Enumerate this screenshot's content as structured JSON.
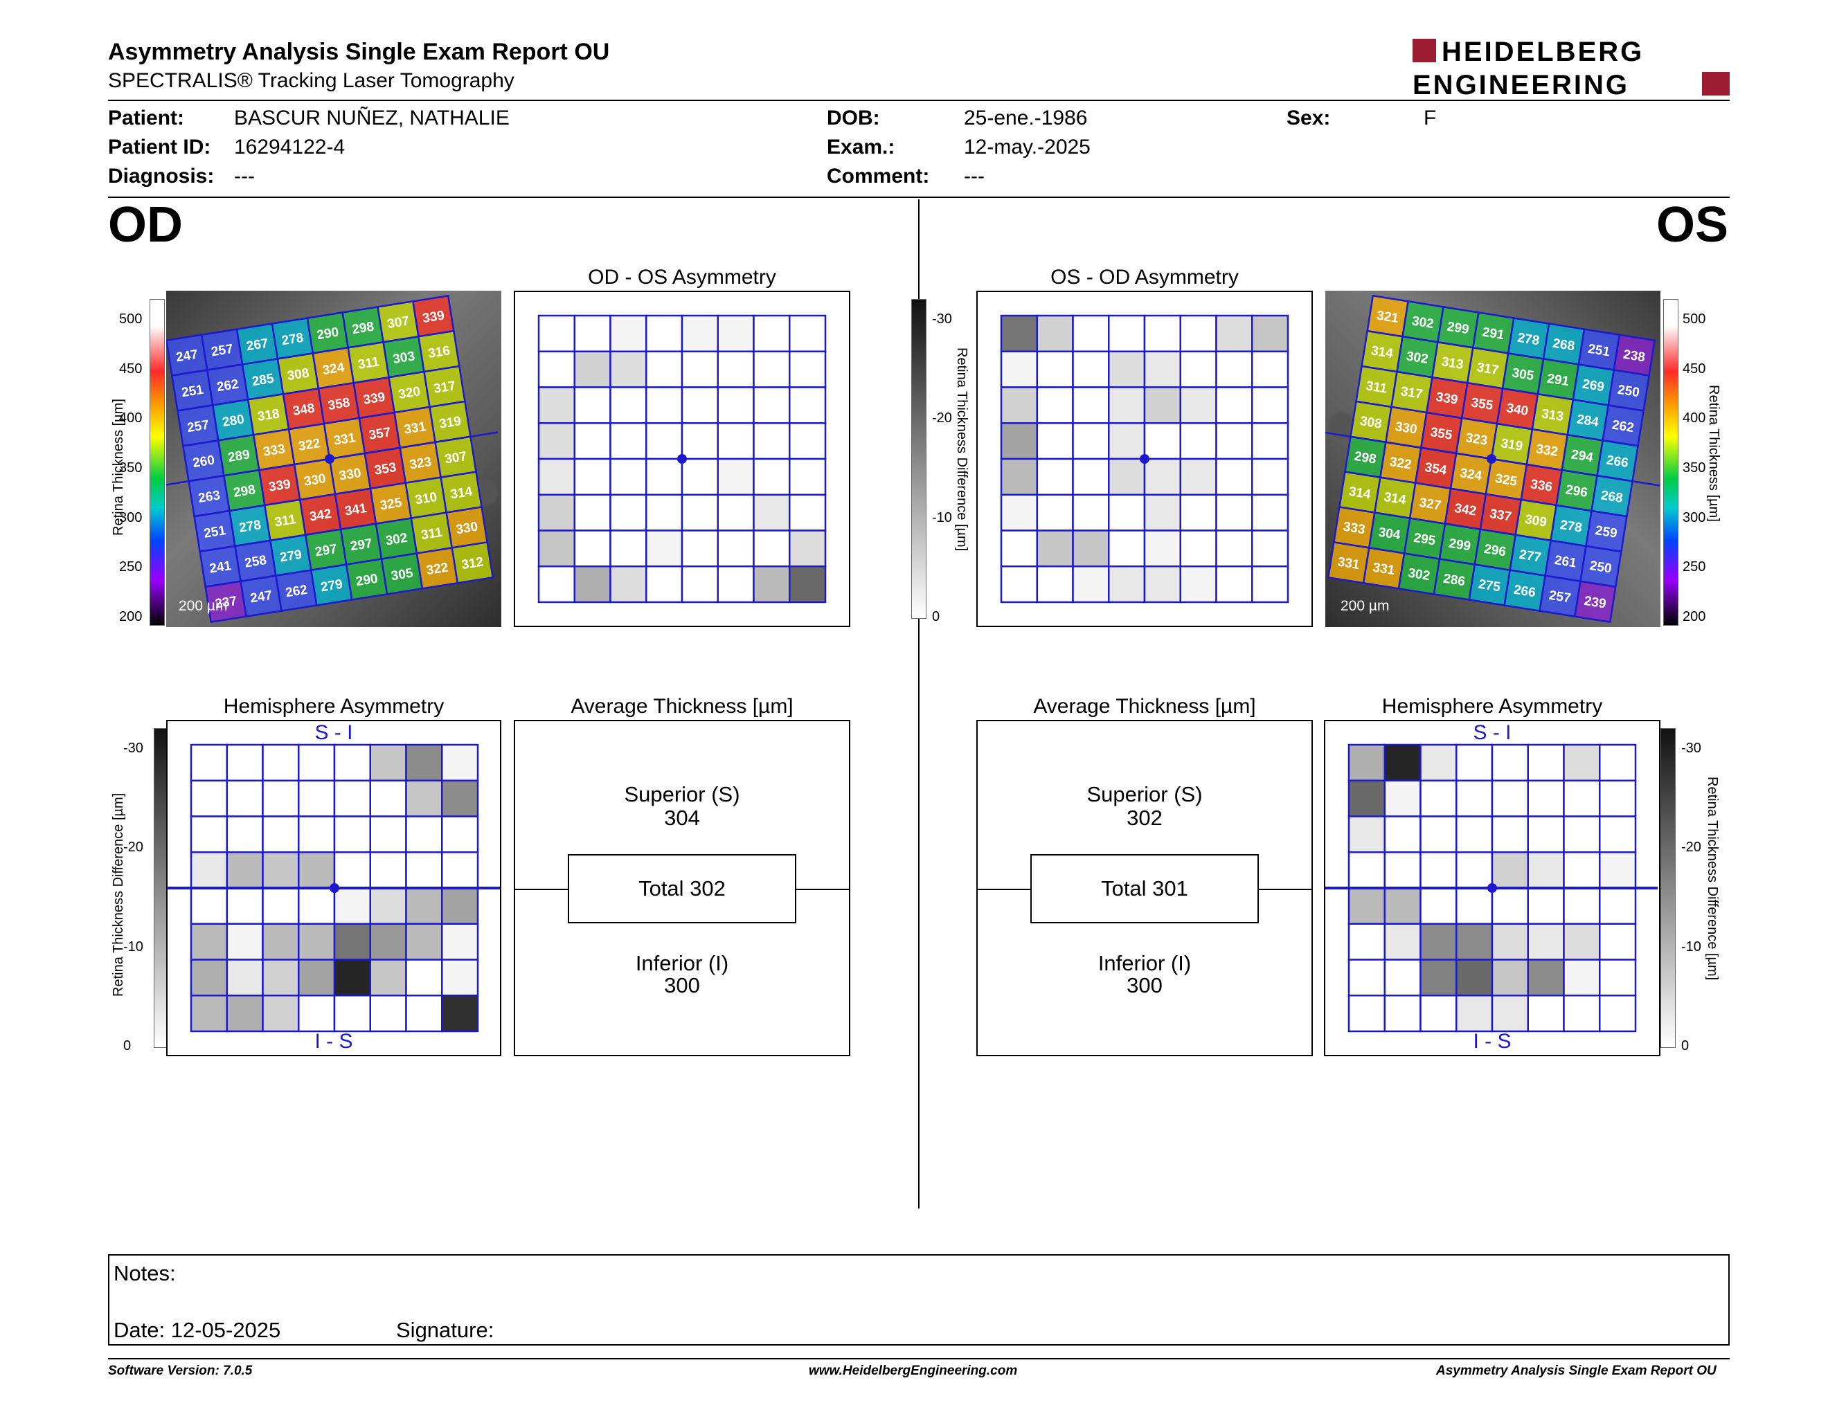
{
  "header": {
    "title": "Asymmetry Analysis Single Exam Report OU",
    "subtitle": "SPECTRALIS® Tracking Laser Tomography",
    "logo_line1": "HEIDELBERG",
    "logo_line2": "ENGINEERING"
  },
  "patient": {
    "patient_label": "Patient:",
    "patient_value": "BASCUR NUÑEZ, NATHALIE",
    "id_label": "Patient ID:",
    "id_value": "16294122-4",
    "diagnosis_label": "Diagnosis:",
    "diagnosis_value": "---",
    "dob_label": "DOB:",
    "dob_value": "25-ene.-1986",
    "exam_label": "Exam.:",
    "exam_value": "12-may.-2025",
    "comment_label": "Comment:",
    "comment_value": "---",
    "sex_label": "Sex:",
    "sex_value": "F"
  },
  "eyes": {
    "od": "OD",
    "os": "OS"
  },
  "panels": {
    "od_os_asym_title": "OD - OS Asymmetry",
    "os_od_asym_title": "OS - OD Asymmetry",
    "hemi_title": "Hemisphere Asymmetry",
    "avg_title": "Average Thickness [µm]",
    "s_i": "S - I",
    "i_s": "I - S",
    "scale_label": "200 µm",
    "thickness_axis_label": "Retina  Thickness [µm]",
    "diff_axis_label": "Retina Thickness Difference [µm]",
    "thickness_ticks": [
      "500",
      "450",
      "400",
      "350",
      "300",
      "250",
      "200"
    ],
    "diff_ticks": [
      "-30",
      "-20",
      "-10",
      "0"
    ]
  },
  "od_avg": {
    "superior_label": "Superior (S)",
    "superior_value": "304",
    "total": "Total 302",
    "inferior_label": "Inferior (I)",
    "inferior_value": "300"
  },
  "os_avg": {
    "superior_label": "Superior (S)",
    "superior_value": "302",
    "total": "Total 301",
    "inferior_label": "Inferior (I)",
    "inferior_value": "300"
  },
  "od_grid_values": [
    [
      247,
      257,
      267,
      278,
      290,
      298,
      307,
      339
    ],
    [
      251,
      262,
      285,
      308,
      324,
      311,
      303,
      316
    ],
    [
      257,
      280,
      318,
      348,
      358,
      339,
      320,
      317
    ],
    [
      260,
      289,
      333,
      322,
      331,
      357,
      331,
      319
    ],
    [
      263,
      298,
      339,
      330,
      330,
      353,
      323,
      307
    ],
    [
      251,
      278,
      311,
      342,
      341,
      325,
      310,
      314
    ],
    [
      241,
      258,
      279,
      297,
      297,
      302,
      311,
      330
    ],
    [
      237,
      247,
      262,
      279,
      290,
      305,
      322,
      312
    ]
  ],
  "os_grid_values": [
    [
      321,
      302,
      299,
      291,
      278,
      268,
      251,
      238
    ],
    [
      314,
      302,
      313,
      317,
      305,
      291,
      269,
      250
    ],
    [
      311,
      317,
      339,
      355,
      340,
      313,
      284,
      262
    ],
    [
      308,
      330,
      355,
      323,
      319,
      332,
      294,
      266
    ],
    [
      298,
      322,
      354,
      324,
      325,
      336,
      296,
      268
    ],
    [
      314,
      314,
      327,
      342,
      337,
      309,
      278,
      259
    ],
    [
      333,
      304,
      295,
      299,
      296,
      277,
      261,
      250
    ],
    [
      331,
      331,
      302,
      286,
      275,
      266,
      257,
      239
    ]
  ],
  "od_os_asym_shades": [
    [
      0,
      0,
      0.05,
      0,
      0.05,
      0.05,
      0,
      0
    ],
    [
      0,
      0.2,
      0.15,
      0,
      0,
      0,
      0,
      0
    ],
    [
      0.15,
      0,
      0,
      0,
      0,
      0,
      0,
      0
    ],
    [
      0.15,
      0,
      0,
      0,
      0,
      0,
      0,
      0
    ],
    [
      0.1,
      0,
      0,
      0,
      0,
      0.05,
      0,
      0
    ],
    [
      0.2,
      0,
      0,
      0,
      0,
      0,
      0.1,
      0
    ],
    [
      0.25,
      0,
      0,
      0.05,
      0,
      0,
      0,
      0.15
    ],
    [
      0,
      0.35,
      0.15,
      0,
      0,
      0,
      0.3,
      0.65
    ]
  ],
  "os_od_asym_shades": [
    [
      0.6,
      0.2,
      0,
      0,
      0,
      0,
      0.15,
      0.25
    ],
    [
      0.05,
      0,
      0,
      0.15,
      0.1,
      0,
      0,
      0
    ],
    [
      0.2,
      0,
      0,
      0.1,
      0.2,
      0.1,
      0,
      0
    ],
    [
      0.4,
      0,
      0,
      0.1,
      0,
      0,
      0,
      0
    ],
    [
      0.3,
      0,
      0,
      0.15,
      0.1,
      0.1,
      0,
      0
    ],
    [
      0.05,
      0,
      0,
      0,
      0.1,
      0,
      0,
      0
    ],
    [
      0,
      0.25,
      0.25,
      0,
      0.05,
      0,
      0,
      0
    ],
    [
      0,
      0,
      0.05,
      0.1,
      0.1,
      0.05,
      0,
      0
    ]
  ],
  "od_hemi_shades": [
    [
      0,
      0,
      0,
      0,
      0,
      0.25,
      0.5,
      0.05
    ],
    [
      0,
      0,
      0,
      0,
      0,
      0,
      0.25,
      0.5
    ],
    [
      0,
      0,
      0,
      0,
      0,
      0,
      0,
      0
    ],
    [
      0.1,
      0.3,
      0.25,
      0.3,
      0,
      0,
      0,
      0
    ],
    [
      0,
      0,
      0,
      0,
      0.05,
      0.15,
      0.3,
      0.4
    ],
    [
      0.3,
      0.05,
      0.3,
      0.3,
      0.6,
      0.45,
      0.3,
      0.05
    ],
    [
      0.35,
      0.1,
      0.2,
      0.4,
      0.95,
      0.25,
      0,
      0.05
    ],
    [
      0.3,
      0.35,
      0.2,
      0,
      0,
      0,
      0,
      0.9
    ]
  ],
  "os_hemi_shades": [
    [
      0.35,
      0.95,
      0.1,
      0,
      0,
      0,
      0.15,
      0
    ],
    [
      0.65,
      0.05,
      0,
      0,
      0,
      0,
      0,
      0
    ],
    [
      0.1,
      0,
      0,
      0,
      0,
      0,
      0,
      0
    ],
    [
      0,
      0,
      0,
      0,
      0.2,
      0.1,
      0,
      0.05
    ],
    [
      0.3,
      0.3,
      0,
      0,
      0,
      0,
      0,
      0
    ],
    [
      0,
      0.1,
      0.5,
      0.5,
      0.15,
      0.1,
      0.15,
      0
    ],
    [
      0,
      0,
      0.55,
      0.65,
      0.25,
      0.5,
      0.05,
      0
    ],
    [
      0,
      0,
      0,
      0.1,
      0.1,
      0,
      0,
      0
    ]
  ],
  "notes": {
    "notes_label": "Notes:",
    "date_label": "Date: 12-05-2025",
    "signature_label": "Signature:"
  },
  "footer": {
    "left": "Software Version: 7.0.5",
    "center": "www.HeidelbergEngineering.com",
    "right": "Asymmetry Analysis Single Exam Report OU"
  },
  "colors": {
    "grid_blue": "#1a1acc",
    "brand_red": "#9b1b30"
  }
}
